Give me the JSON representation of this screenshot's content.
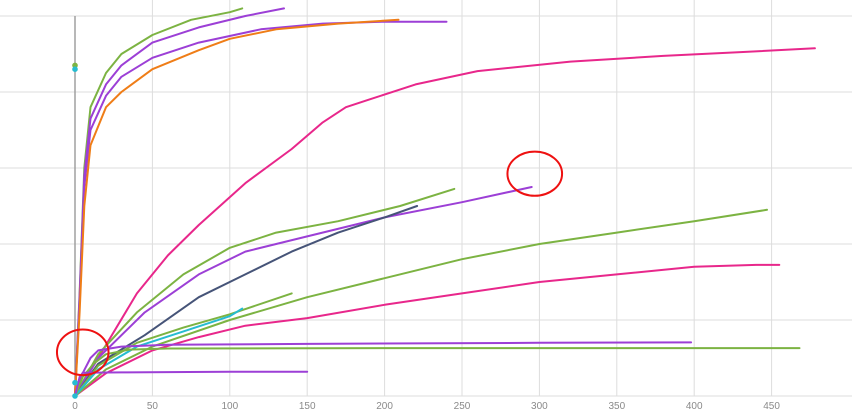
{
  "chart_data": {
    "type": "line",
    "title": "",
    "xlabel": "",
    "ylabel": "",
    "xlim": [
      -5,
      480
    ],
    "ylim": [
      0,
      1.05
    ],
    "x_ticks": [
      0,
      50,
      100,
      150,
      200,
      250,
      300,
      350,
      400,
      450
    ],
    "x_tick_labels": [
      "0",
      "50",
      "100",
      "150",
      "200",
      "250",
      "300",
      "350",
      "400",
      "450"
    ],
    "y_grid": [
      0.2,
      0.4,
      0.6,
      0.8,
      1.0
    ],
    "grid": true,
    "legend": "none",
    "series": [
      {
        "color": "#7cb342",
        "points": [
          [
            0,
            0
          ],
          [
            3,
            0.27
          ],
          [
            6,
            0.6
          ],
          [
            10,
            0.76
          ],
          [
            20,
            0.85
          ],
          [
            30,
            0.9
          ],
          [
            50,
            0.95
          ],
          [
            75,
            0.99
          ],
          [
            100,
            1.01
          ],
          [
            108,
            1.02
          ]
        ]
      },
      {
        "color": "#9c3fd6",
        "points": [
          [
            0,
            0
          ],
          [
            3,
            0.26
          ],
          [
            6,
            0.58
          ],
          [
            10,
            0.73
          ],
          [
            20,
            0.82
          ],
          [
            30,
            0.87
          ],
          [
            50,
            0.93
          ],
          [
            80,
            0.97
          ],
          [
            110,
            1.0
          ],
          [
            135,
            1.02
          ]
        ]
      },
      {
        "color": "#9c3fd6",
        "points": [
          [
            0,
            0
          ],
          [
            3,
            0.25
          ],
          [
            6,
            0.55
          ],
          [
            10,
            0.7
          ],
          [
            20,
            0.79
          ],
          [
            30,
            0.84
          ],
          [
            50,
            0.89
          ],
          [
            80,
            0.93
          ],
          [
            120,
            0.965
          ],
          [
            160,
            0.98
          ],
          [
            200,
            0.985
          ],
          [
            240,
            0.985
          ]
        ]
      },
      {
        "color": "#ef7d17",
        "points": [
          [
            0,
            0
          ],
          [
            3,
            0.22
          ],
          [
            6,
            0.5
          ],
          [
            10,
            0.66
          ],
          [
            20,
            0.76
          ],
          [
            30,
            0.8
          ],
          [
            50,
            0.86
          ],
          [
            80,
            0.91
          ],
          [
            100,
            0.94
          ],
          [
            130,
            0.965
          ],
          [
            170,
            0.98
          ],
          [
            209,
            0.99
          ]
        ]
      },
      {
        "color": "#e8278b",
        "points": [
          [
            0,
            0
          ],
          [
            15,
            0.1
          ],
          [
            40,
            0.27
          ],
          [
            60,
            0.37
          ],
          [
            80,
            0.45
          ],
          [
            110,
            0.56
          ],
          [
            140,
            0.65
          ],
          [
            160,
            0.72
          ],
          [
            175,
            0.76
          ],
          [
            190,
            0.78
          ],
          [
            220,
            0.82
          ],
          [
            260,
            0.855
          ],
          [
            320,
            0.88
          ],
          [
            380,
            0.895
          ],
          [
            430,
            0.905
          ],
          [
            478,
            0.915
          ]
        ]
      },
      {
        "color": "#e8278b",
        "points": [
          [
            0,
            0
          ],
          [
            20,
            0.06
          ],
          [
            50,
            0.12
          ],
          [
            80,
            0.155
          ],
          [
            110,
            0.185
          ],
          [
            150,
            0.205
          ],
          [
            200,
            0.24
          ],
          [
            250,
            0.27
          ],
          [
            300,
            0.3
          ],
          [
            350,
            0.32
          ],
          [
            400,
            0.34
          ],
          [
            440,
            0.345
          ],
          [
            455,
            0.345
          ]
        ]
      },
      {
        "color": "#7cb342",
        "points": [
          [
            0,
            0
          ],
          [
            15,
            0.11
          ],
          [
            40,
            0.22
          ],
          [
            70,
            0.32
          ],
          [
            100,
            0.39
          ],
          [
            130,
            0.43
          ],
          [
            170,
            0.46
          ],
          [
            210,
            0.5
          ],
          [
            245,
            0.545
          ]
        ]
      },
      {
        "color": "#9c3fd6",
        "points": [
          [
            0,
            0
          ],
          [
            15,
            0.1
          ],
          [
            45,
            0.22
          ],
          [
            80,
            0.32
          ],
          [
            110,
            0.38
          ],
          [
            150,
            0.42
          ],
          [
            200,
            0.47
          ],
          [
            250,
            0.51
          ],
          [
            295,
            0.55
          ]
        ]
      },
      {
        "color": "#465478",
        "points": [
          [
            0,
            0
          ],
          [
            15,
            0.085
          ],
          [
            45,
            0.16
          ],
          [
            80,
            0.26
          ],
          [
            110,
            0.32
          ],
          [
            140,
            0.38
          ],
          [
            170,
            0.43
          ],
          [
            200,
            0.47
          ],
          [
            221,
            0.5
          ]
        ]
      },
      {
        "color": "#7cb342",
        "points": [
          [
            0,
            0
          ],
          [
            20,
            0.07
          ],
          [
            50,
            0.13
          ],
          [
            100,
            0.2
          ],
          [
            150,
            0.26
          ],
          [
            200,
            0.31
          ],
          [
            250,
            0.36
          ],
          [
            300,
            0.4
          ],
          [
            350,
            0.43
          ],
          [
            400,
            0.46
          ],
          [
            447,
            0.49
          ]
        ]
      },
      {
        "color": "#7cb342",
        "points": [
          [
            0,
            0
          ],
          [
            15,
            0.08
          ],
          [
            40,
            0.14
          ],
          [
            70,
            0.18
          ],
          [
            100,
            0.215
          ],
          [
            140,
            0.27
          ]
        ]
      },
      {
        "color": "#26bcd0",
        "points": [
          [
            0,
            0
          ],
          [
            15,
            0.07
          ],
          [
            40,
            0.13
          ],
          [
            70,
            0.17
          ],
          [
            100,
            0.21
          ],
          [
            108,
            0.23
          ]
        ]
      },
      {
        "color": "#9c3fd6",
        "points": [
          [
            0,
            0
          ],
          [
            5,
            0.06
          ],
          [
            10,
            0.1
          ],
          [
            15,
            0.12
          ],
          [
            30,
            0.13
          ],
          [
            60,
            0.135
          ],
          [
            150,
            0.137
          ],
          [
            300,
            0.14
          ],
          [
            398,
            0.141
          ]
        ]
      },
      {
        "color": "#7cb342",
        "points": [
          [
            0,
            0
          ],
          [
            5,
            0.05
          ],
          [
            12,
            0.085
          ],
          [
            20,
            0.11
          ],
          [
            35,
            0.122
          ],
          [
            60,
            0.125
          ],
          [
            200,
            0.126
          ],
          [
            350,
            0.126
          ],
          [
            468,
            0.126
          ]
        ]
      },
      {
        "color": "#9c3fd6",
        "points": [
          [
            0,
            0
          ],
          [
            3,
            0.05
          ],
          [
            5,
            0.061
          ],
          [
            30,
            0.062
          ],
          [
            100,
            0.064
          ],
          [
            150,
            0.064
          ]
        ]
      }
    ],
    "annotations": [
      {
        "shape": "circle",
        "color": "#ee1111",
        "cx": 297,
        "cy": 0.585,
        "rx": 17,
        "ry": 0.058
      },
      {
        "shape": "circle",
        "color": "#ee1111",
        "cx": 5,
        "cy": 0.115,
        "rx": 16,
        "ry": 0.06
      }
    ]
  }
}
